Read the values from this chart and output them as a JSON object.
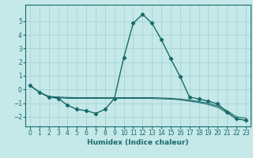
{
  "xlabel": "Humidex (Indice chaleur)",
  "background_color": "#c5e8e8",
  "grid_color": "#a8d4d4",
  "line_color": "#1a6b6b",
  "xlim": [
    -0.5,
    23.5
  ],
  "ylim": [
    -2.7,
    6.2
  ],
  "xticks": [
    0,
    1,
    2,
    3,
    4,
    5,
    6,
    7,
    8,
    9,
    10,
    11,
    12,
    13,
    14,
    15,
    16,
    17,
    18,
    19,
    20,
    21,
    22,
    23
  ],
  "yticks": [
    -2,
    -1,
    0,
    1,
    2,
    3,
    4,
    5
  ],
  "series": [
    {
      "x": [
        0,
        1,
        2,
        3,
        4,
        5,
        6,
        7,
        8,
        9,
        10,
        11,
        12,
        13,
        14,
        15,
        16,
        17,
        18,
        19,
        20,
        21,
        22,
        23
      ],
      "y": [
        0.3,
        -0.2,
        -0.55,
        -0.65,
        -1.15,
        -1.45,
        -1.55,
        -1.75,
        -1.45,
        -0.65,
        2.35,
        4.85,
        5.5,
        4.85,
        3.65,
        2.25,
        0.95,
        -0.55,
        -0.7,
        -0.85,
        -1.05,
        -1.65,
        -2.15,
        -2.25
      ],
      "markers": true
    },
    {
      "x": [
        0,
        1,
        2,
        3,
        4,
        5,
        6,
        7,
        8,
        9,
        10,
        11,
        12,
        13,
        14,
        15,
        16,
        17,
        18,
        19,
        20,
        21,
        22,
        23
      ],
      "y": [
        0.3,
        -0.2,
        -0.55,
        -0.6,
        -0.65,
        -0.65,
        -0.65,
        -0.65,
        -0.65,
        -0.65,
        -0.65,
        -0.65,
        -0.65,
        -0.65,
        -0.68,
        -0.7,
        -0.75,
        -0.85,
        -0.95,
        -1.1,
        -1.3,
        -1.7,
        -2.15,
        -2.25
      ],
      "markers": false
    },
    {
      "x": [
        0,
        1,
        2,
        3,
        4,
        5,
        6,
        7,
        8,
        9,
        10,
        11,
        12,
        13,
        14,
        15,
        16,
        17,
        18,
        19,
        20,
        21,
        22,
        23
      ],
      "y": [
        0.3,
        -0.2,
        -0.5,
        -0.55,
        -0.58,
        -0.6,
        -0.6,
        -0.6,
        -0.6,
        -0.6,
        -0.6,
        -0.6,
        -0.6,
        -0.6,
        -0.62,
        -0.65,
        -0.7,
        -0.78,
        -0.88,
        -1.0,
        -1.2,
        -1.55,
        -2.0,
        -2.1
      ],
      "markers": false
    }
  ]
}
